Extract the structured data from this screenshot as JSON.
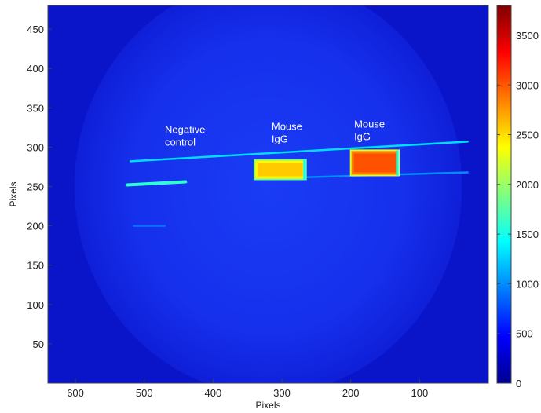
{
  "chart_data": {
    "type": "heatmap",
    "xlabel": "Pixels",
    "ylabel": "Pixels",
    "xlim": [
      640,
      0
    ],
    "ylim": [
      0,
      480
    ],
    "xticks": [
      600,
      500,
      400,
      300,
      200,
      100
    ],
    "yticks": [
      50,
      100,
      150,
      200,
      250,
      300,
      350,
      400,
      450
    ],
    "colorbar": {
      "range": [
        0,
        3800
      ],
      "ticks": [
        0,
        500,
        1000,
        1500,
        2000,
        2500,
        3000,
        3500
      ],
      "colormap": "jet"
    },
    "background_value": 400,
    "annotations": [
      {
        "lines": [
          "Negative",
          "control"
        ],
        "x": 470,
        "y": 318
      },
      {
        "lines": [
          "Mouse",
          "IgG"
        ],
        "x": 315,
        "y": 322
      },
      {
        "lines": [
          "Mouse",
          "IgG"
        ],
        "x": 195,
        "y": 325
      }
    ],
    "signal_regions": [
      {
        "name": "Mouse IgG (left spot)",
        "x_range": [
          340,
          265
        ],
        "y_range": [
          259,
          284
        ],
        "intensity": 2400
      },
      {
        "name": "Mouse IgG (right spot)",
        "x_range": [
          200,
          130
        ],
        "y_range": [
          264,
          296
        ],
        "intensity": 2850
      }
    ],
    "streaks": [
      {
        "x": [
          520,
          30
        ],
        "y": [
          282,
          307
        ],
        "intensity": 1300
      },
      {
        "x": [
          330,
          30
        ],
        "y": [
          260,
          268
        ],
        "intensity": 1000
      },
      {
        "x": [
          525,
          440
        ],
        "y": [
          252,
          256
        ],
        "intensity": 1600
      },
      {
        "x": [
          515,
          470
        ],
        "y": [
          200,
          200
        ],
        "intensity": 900
      }
    ]
  }
}
